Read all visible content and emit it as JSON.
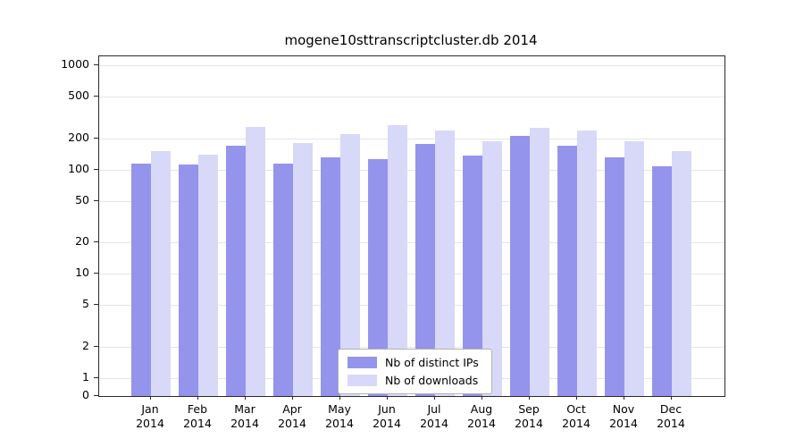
{
  "chart_data": {
    "type": "bar",
    "title": "mogene10sttranscriptcluster.db 2014",
    "year_label": "2014",
    "categories": [
      "Jan",
      "Feb",
      "Mar",
      "Apr",
      "May",
      "Jun",
      "Jul",
      "Aug",
      "Sep",
      "Oct",
      "Nov",
      "Dec"
    ],
    "series": [
      {
        "name": "Nb of distinct IPs",
        "color": "#9494ec",
        "values": [
          115,
          112,
          170,
          115,
          130,
          127,
          175,
          135,
          210,
          170,
          130,
          108
        ]
      },
      {
        "name": "Nb of downloads",
        "color": "#d8d8f8",
        "values": [
          150,
          140,
          255,
          180,
          220,
          265,
          235,
          185,
          250,
          235,
          185,
          150
        ]
      }
    ],
    "y_ticks": [
      0,
      1,
      2,
      5,
      10,
      20,
      50,
      100,
      200,
      500,
      1000
    ],
    "y_scale": "log",
    "ylim": [
      0,
      1000
    ],
    "xlabel": "",
    "ylabel": "",
    "grid": true,
    "legend_position": "bottom-center"
  }
}
